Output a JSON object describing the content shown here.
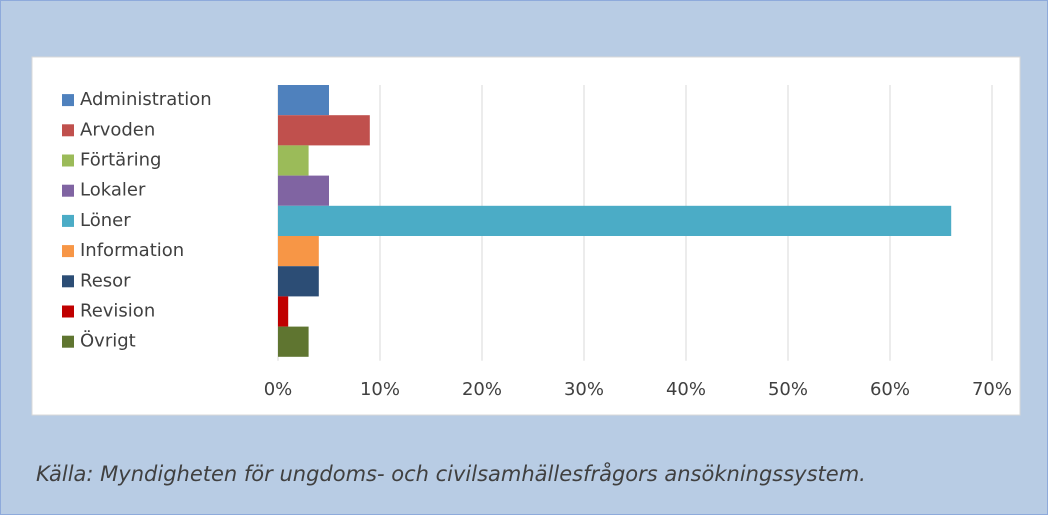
{
  "chart_data": {
    "type": "bar",
    "orientation": "horizontal",
    "categories": [
      "Administration",
      "Arvoden",
      "Förtäring",
      "Lokaler",
      "Löner",
      "Information",
      "Resor",
      "Revision",
      "Övrigt"
    ],
    "values": [
      5,
      9,
      3,
      5,
      66,
      4,
      4,
      1,
      3
    ],
    "colors": [
      "#4f81bd",
      "#c0504d",
      "#9bbb59",
      "#8064a2",
      "#4bacc6",
      "#f79646",
      "#2c4d75",
      "#c00000",
      "#5f7530"
    ],
    "xlim": [
      0,
      70
    ],
    "xticks": [
      {
        "value": 0,
        "label": "0%"
      },
      {
        "value": 10,
        "label": "10%"
      },
      {
        "value": 20,
        "label": "20%"
      },
      {
        "value": 30,
        "label": "30%"
      },
      {
        "value": 40,
        "label": "40%"
      },
      {
        "value": 50,
        "label": "50%"
      },
      {
        "value": 60,
        "label": "60%"
      },
      {
        "value": 70,
        "label": "70%"
      }
    ],
    "grid": true,
    "caption": "Källa: Myndigheten för ungdoms- och civilsamhällesfrågors ansökningssystem."
  }
}
